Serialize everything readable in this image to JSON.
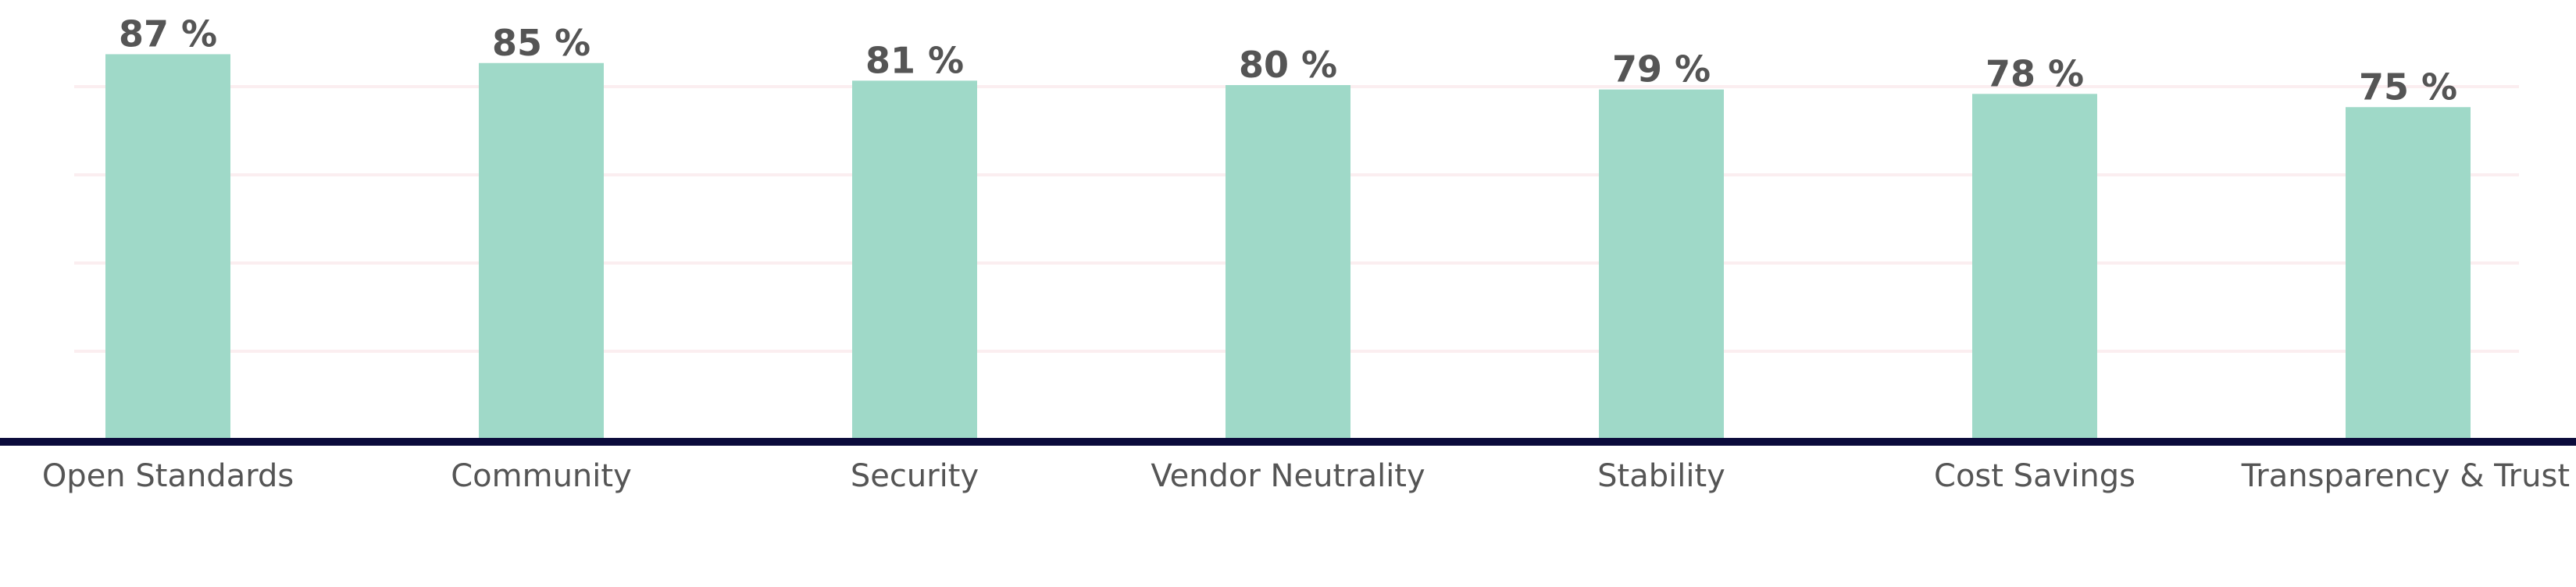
{
  "chart_data": {
    "type": "bar",
    "title": "",
    "xlabel": "",
    "ylabel": "",
    "categories": [
      "Open Standards",
      "Community",
      "Security",
      "Vendor Neutrality",
      "Stability",
      "Cost Savings",
      "Transparency & Trust"
    ],
    "values": [
      87,
      85,
      81,
      80,
      79,
      78,
      75
    ],
    "value_labels": [
      "87 %",
      "85 %",
      "81 %",
      "80 %",
      "79 %",
      "78 %",
      "75 %"
    ],
    "ylim": [
      0,
      100
    ],
    "grid": true,
    "legend": "none",
    "colors": {
      "bar": "#9fd9c8",
      "axis": "#0b0b3b",
      "grid": "#fbeef0",
      "text": "#555555"
    }
  }
}
